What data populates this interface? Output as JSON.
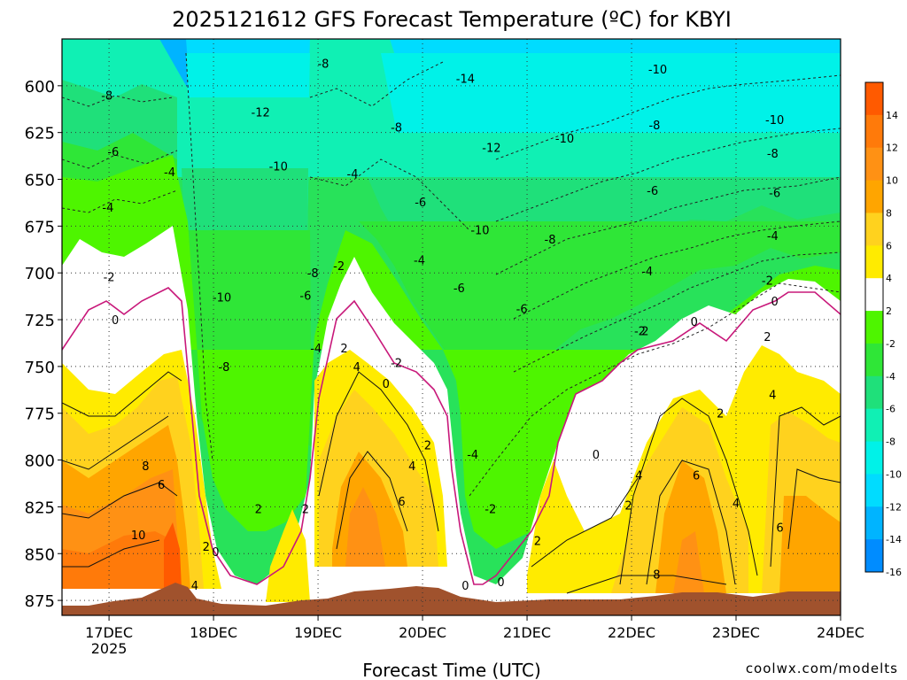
{
  "chart_data": {
    "type": "heatmap",
    "title": "2025121612 GFS Forecast Temperature (ºC) for KBYI",
    "xlabel": "Forecast Time (UTC)",
    "ylabel": "",
    "credit": "coolwx.com/modelts",
    "x_ticks": [
      "17DEC",
      "18DEC",
      "19DEC",
      "20DEC",
      "21DEC",
      "22DEC",
      "23DEC",
      "24DEC"
    ],
    "x_year_label": "2025",
    "x_range_days": [
      16.55,
      24.0
    ],
    "y_ticks": [
      600,
      625,
      650,
      675,
      700,
      725,
      750,
      775,
      800,
      825,
      850,
      875
    ],
    "y_range_hpa": [
      575,
      883
    ],
    "colorbar_ticks": [
      14,
      12,
      10,
      8,
      6,
      4,
      2,
      -2,
      -4,
      -6,
      -8,
      -10,
      -12,
      -14,
      -16
    ],
    "colorbar_bins": [
      {
        "range": "12 to 16",
        "color": "#ff5a00"
      },
      {
        "range": "10 to 12",
        "color": "#ff7a0a"
      },
      {
        "range": "8 to 10",
        "color": "#ff9114"
      },
      {
        "range": "6 to 8",
        "color": "#ffa500"
      },
      {
        "range": "4 to 6",
        "color": "#ffd21e"
      },
      {
        "range": "2 to 4",
        "color": "#ffeb00"
      },
      {
        "range": "-2 to 2",
        "color": "#ffffff"
      },
      {
        "range": "-4 to -2",
        "color": "#4ef500"
      },
      {
        "range": "-6 to -4",
        "color": "#2fe637"
      },
      {
        "range": "-8 to -6",
        "color": "#1fe07a"
      },
      {
        "range": "-10 to -8",
        "color": "#10f0b4"
      },
      {
        "range": "-12 to -10",
        "color": "#00f2e8"
      },
      {
        "range": "-14 to -12",
        "color": "#00dcff"
      },
      {
        "range": "-16 to -14",
        "color": "#00b4ff"
      },
      {
        "range": "-18 to -16",
        "color": "#008cff"
      }
    ],
    "terrain_color": "#a0522d",
    "surface_pressure_hpa_approx": 878,
    "temperature_profile_by_day": [
      {
        "day": 16.7,
        "temps_c": [
          -8,
          -6,
          -4,
          -2,
          0,
          4,
          8,
          10
        ]
      },
      {
        "day": 17.6,
        "temps_c": [
          -6,
          -4,
          -2,
          2,
          6,
          10,
          14,
          12
        ]
      },
      {
        "day": 18.0,
        "temps_c": [
          -12,
          -10,
          -10,
          -10,
          -8,
          -6,
          -4,
          0
        ]
      },
      {
        "day": 18.5,
        "temps_c": [
          -12,
          -10,
          -8,
          -6,
          -4,
          -2,
          0,
          2
        ]
      },
      {
        "day": 19.4,
        "temps_c": [
          -8,
          -6,
          -4,
          -2,
          2,
          4,
          8,
          8
        ]
      },
      {
        "day": 20.0,
        "temps_c": [
          -10,
          -8,
          -6,
          -4,
          -2,
          0,
          2,
          4
        ]
      },
      {
        "day": 20.4,
        "temps_c": [
          -14,
          -12,
          -10,
          -6,
          -4,
          -2,
          0,
          0
        ]
      },
      {
        "day": 21.0,
        "temps_c": [
          -12,
          -10,
          -8,
          -6,
          -2,
          0,
          2,
          2
        ]
      },
      {
        "day": 22.5,
        "temps_c": [
          -10,
          -8,
          -6,
          -4,
          0,
          2,
          6,
          8
        ]
      },
      {
        "day": 23.8,
        "temps_c": [
          -10,
          -8,
          -4,
          -2,
          2,
          4,
          6,
          6
        ]
      }
    ],
    "contour_labels": [
      {
        "text": "-8",
        "day": 16.98,
        "hpa": 605
      },
      {
        "text": "-6",
        "day": 17.04,
        "hpa": 635
      },
      {
        "text": "-4",
        "day": 16.99,
        "hpa": 665
      },
      {
        "text": "-2",
        "day": 17.0,
        "hpa": 702
      },
      {
        "text": "0",
        "day": 17.06,
        "hpa": 725
      },
      {
        "text": "8",
        "day": 17.35,
        "hpa": 803
      },
      {
        "text": "6",
        "day": 17.5,
        "hpa": 813
      },
      {
        "text": "10",
        "day": 17.28,
        "hpa": 840
      },
      {
        "text": "-4",
        "day": 17.58,
        "hpa": 646
      },
      {
        "text": "4",
        "day": 17.82,
        "hpa": 867
      },
      {
        "text": "2",
        "day": 17.93,
        "hpa": 846
      },
      {
        "text": "0",
        "day": 18.02,
        "hpa": 849
      },
      {
        "text": "-8",
        "day": 18.1,
        "hpa": 750
      },
      {
        "text": "-10",
        "day": 18.08,
        "hpa": 713
      },
      {
        "text": "-12",
        "day": 18.45,
        "hpa": 614
      },
      {
        "text": "-10",
        "day": 18.62,
        "hpa": 643
      },
      {
        "text": "-8",
        "day": 19.05,
        "hpa": 588
      },
      {
        "text": "-8",
        "day": 18.95,
        "hpa": 700
      },
      {
        "text": "-6",
        "day": 18.88,
        "hpa": 712
      },
      {
        "text": "-4",
        "day": 18.98,
        "hpa": 740
      },
      {
        "text": "2",
        "day": 18.43,
        "hpa": 826
      },
      {
        "text": "2",
        "day": 18.88,
        "hpa": 826
      },
      {
        "text": "-4",
        "day": 19.33,
        "hpa": 647
      },
      {
        "text": "-2",
        "day": 19.2,
        "hpa": 696
      },
      {
        "text": "2",
        "day": 19.25,
        "hpa": 740
      },
      {
        "text": "4",
        "day": 19.37,
        "hpa": 750
      },
      {
        "text": "0",
        "day": 19.65,
        "hpa": 759
      },
      {
        "text": "-2",
        "day": 19.75,
        "hpa": 748
      },
      {
        "text": "-8",
        "day": 19.75,
        "hpa": 622
      },
      {
        "text": "-6",
        "day": 19.98,
        "hpa": 662
      },
      {
        "text": "-4",
        "day": 19.97,
        "hpa": 693
      },
      {
        "text": "2",
        "day": 20.05,
        "hpa": 792
      },
      {
        "text": "4",
        "day": 19.9,
        "hpa": 803
      },
      {
        "text": "6",
        "day": 19.8,
        "hpa": 822
      },
      {
        "text": "-14",
        "day": 20.41,
        "hpa": 596
      },
      {
        "text": "-12",
        "day": 20.66,
        "hpa": 633
      },
      {
        "text": "-10",
        "day": 20.55,
        "hpa": 677
      },
      {
        "text": "-6",
        "day": 20.35,
        "hpa": 708
      },
      {
        "text": "-4",
        "day": 20.48,
        "hpa": 797
      },
      {
        "text": "-2",
        "day": 20.65,
        "hpa": 826
      },
      {
        "text": "0",
        "day": 20.41,
        "hpa": 867
      },
      {
        "text": "0",
        "day": 20.75,
        "hpa": 865
      },
      {
        "text": "-10",
        "day": 21.36,
        "hpa": 628
      },
      {
        "text": "-8",
        "day": 21.22,
        "hpa": 682
      },
      {
        "text": "-6",
        "day": 20.95,
        "hpa": 719
      },
      {
        "text": "0",
        "day": 21.66,
        "hpa": 797
      },
      {
        "text": "2",
        "day": 21.1,
        "hpa": 843
      },
      {
        "text": "2",
        "day": 21.97,
        "hpa": 824
      },
      {
        "text": "-10",
        "day": 22.25,
        "hpa": 591
      },
      {
        "text": "-8",
        "day": 22.22,
        "hpa": 621
      },
      {
        "text": "-6",
        "day": 22.2,
        "hpa": 656
      },
      {
        "text": "-4",
        "day": 22.15,
        "hpa": 699
      },
      {
        "text": "-2",
        "day": 22.08,
        "hpa": 731
      },
      {
        "text": "0",
        "day": 22.6,
        "hpa": 726
      },
      {
        "text": "2",
        "day": 22.13,
        "hpa": 731
      },
      {
        "text": "4",
        "day": 22.07,
        "hpa": 808
      },
      {
        "text": "6",
        "day": 22.62,
        "hpa": 808
      },
      {
        "text": "8",
        "day": 22.24,
        "hpa": 861
      },
      {
        "text": "2",
        "day": 22.85,
        "hpa": 775
      },
      {
        "text": "4",
        "day": 23.0,
        "hpa": 823
      },
      {
        "text": "-10",
        "day": 23.37,
        "hpa": 618
      },
      {
        "text": "-8",
        "day": 23.35,
        "hpa": 636
      },
      {
        "text": "-6",
        "day": 23.37,
        "hpa": 657
      },
      {
        "text": "-4",
        "day": 23.35,
        "hpa": 680
      },
      {
        "text": "-2",
        "day": 23.3,
        "hpa": 704
      },
      {
        "text": "0",
        "day": 23.37,
        "hpa": 715
      },
      {
        "text": "2",
        "day": 23.3,
        "hpa": 734
      },
      {
        "text": "4",
        "day": 23.35,
        "hpa": 765
      },
      {
        "text": "6",
        "day": 23.42,
        "hpa": 836
      }
    ]
  }
}
